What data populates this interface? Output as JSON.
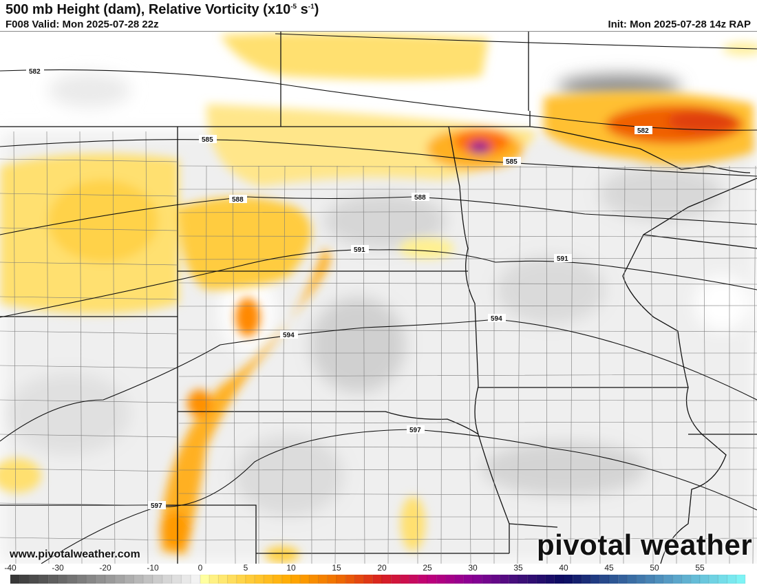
{
  "header": {
    "title": "500 mb Height (dam), Relative Vorticity (x10",
    "title_sup1": "-5",
    "title_mid": " s",
    "title_sup2": "-1",
    "title_end": ")",
    "valid": "F008 Valid: Mon 2025-07-28 22z",
    "init": "Init: Mon 2025-07-28 14z RAP"
  },
  "map": {
    "height_contours": [
      "582",
      "582",
      "585",
      "585",
      "588",
      "588",
      "591",
      "591",
      "594",
      "594",
      "597",
      "597"
    ]
  },
  "watermark": {
    "url": "www.pivotalweather.com",
    "logo": "pivotal weather"
  },
  "colorbar": {
    "tick_labels": [
      "-40",
      "-30",
      "-20",
      "-10",
      "0",
      "5",
      "10",
      "15",
      "20",
      "25",
      "30",
      "35",
      "40",
      "45",
      "50",
      "55"
    ],
    "tick_values": [
      -40,
      -30,
      -20,
      -10,
      0,
      5,
      10,
      15,
      20,
      25,
      30,
      35,
      40,
      45,
      50,
      55
    ],
    "range": [
      -40,
      60
    ],
    "stops": [
      {
        "v": -40,
        "color": "#333333"
      },
      {
        "v": 0,
        "color": "#f8f8f8"
      },
      {
        "v": 0.01,
        "color": "#ffffa0"
      },
      {
        "v": 5,
        "color": "#ffd040"
      },
      {
        "v": 10,
        "color": "#ffaa00"
      },
      {
        "v": 15,
        "color": "#f07000"
      },
      {
        "v": 20,
        "color": "#d82020"
      },
      {
        "v": 25,
        "color": "#c0007a"
      },
      {
        "v": 30,
        "color": "#8a0096"
      },
      {
        "v": 35,
        "color": "#40107a"
      },
      {
        "v": 40,
        "color": "#0a0a60"
      },
      {
        "v": 45,
        "color": "#2a5090"
      },
      {
        "v": 52,
        "color": "#58a0c8"
      },
      {
        "v": 60,
        "color": "#80f8f8"
      }
    ]
  }
}
